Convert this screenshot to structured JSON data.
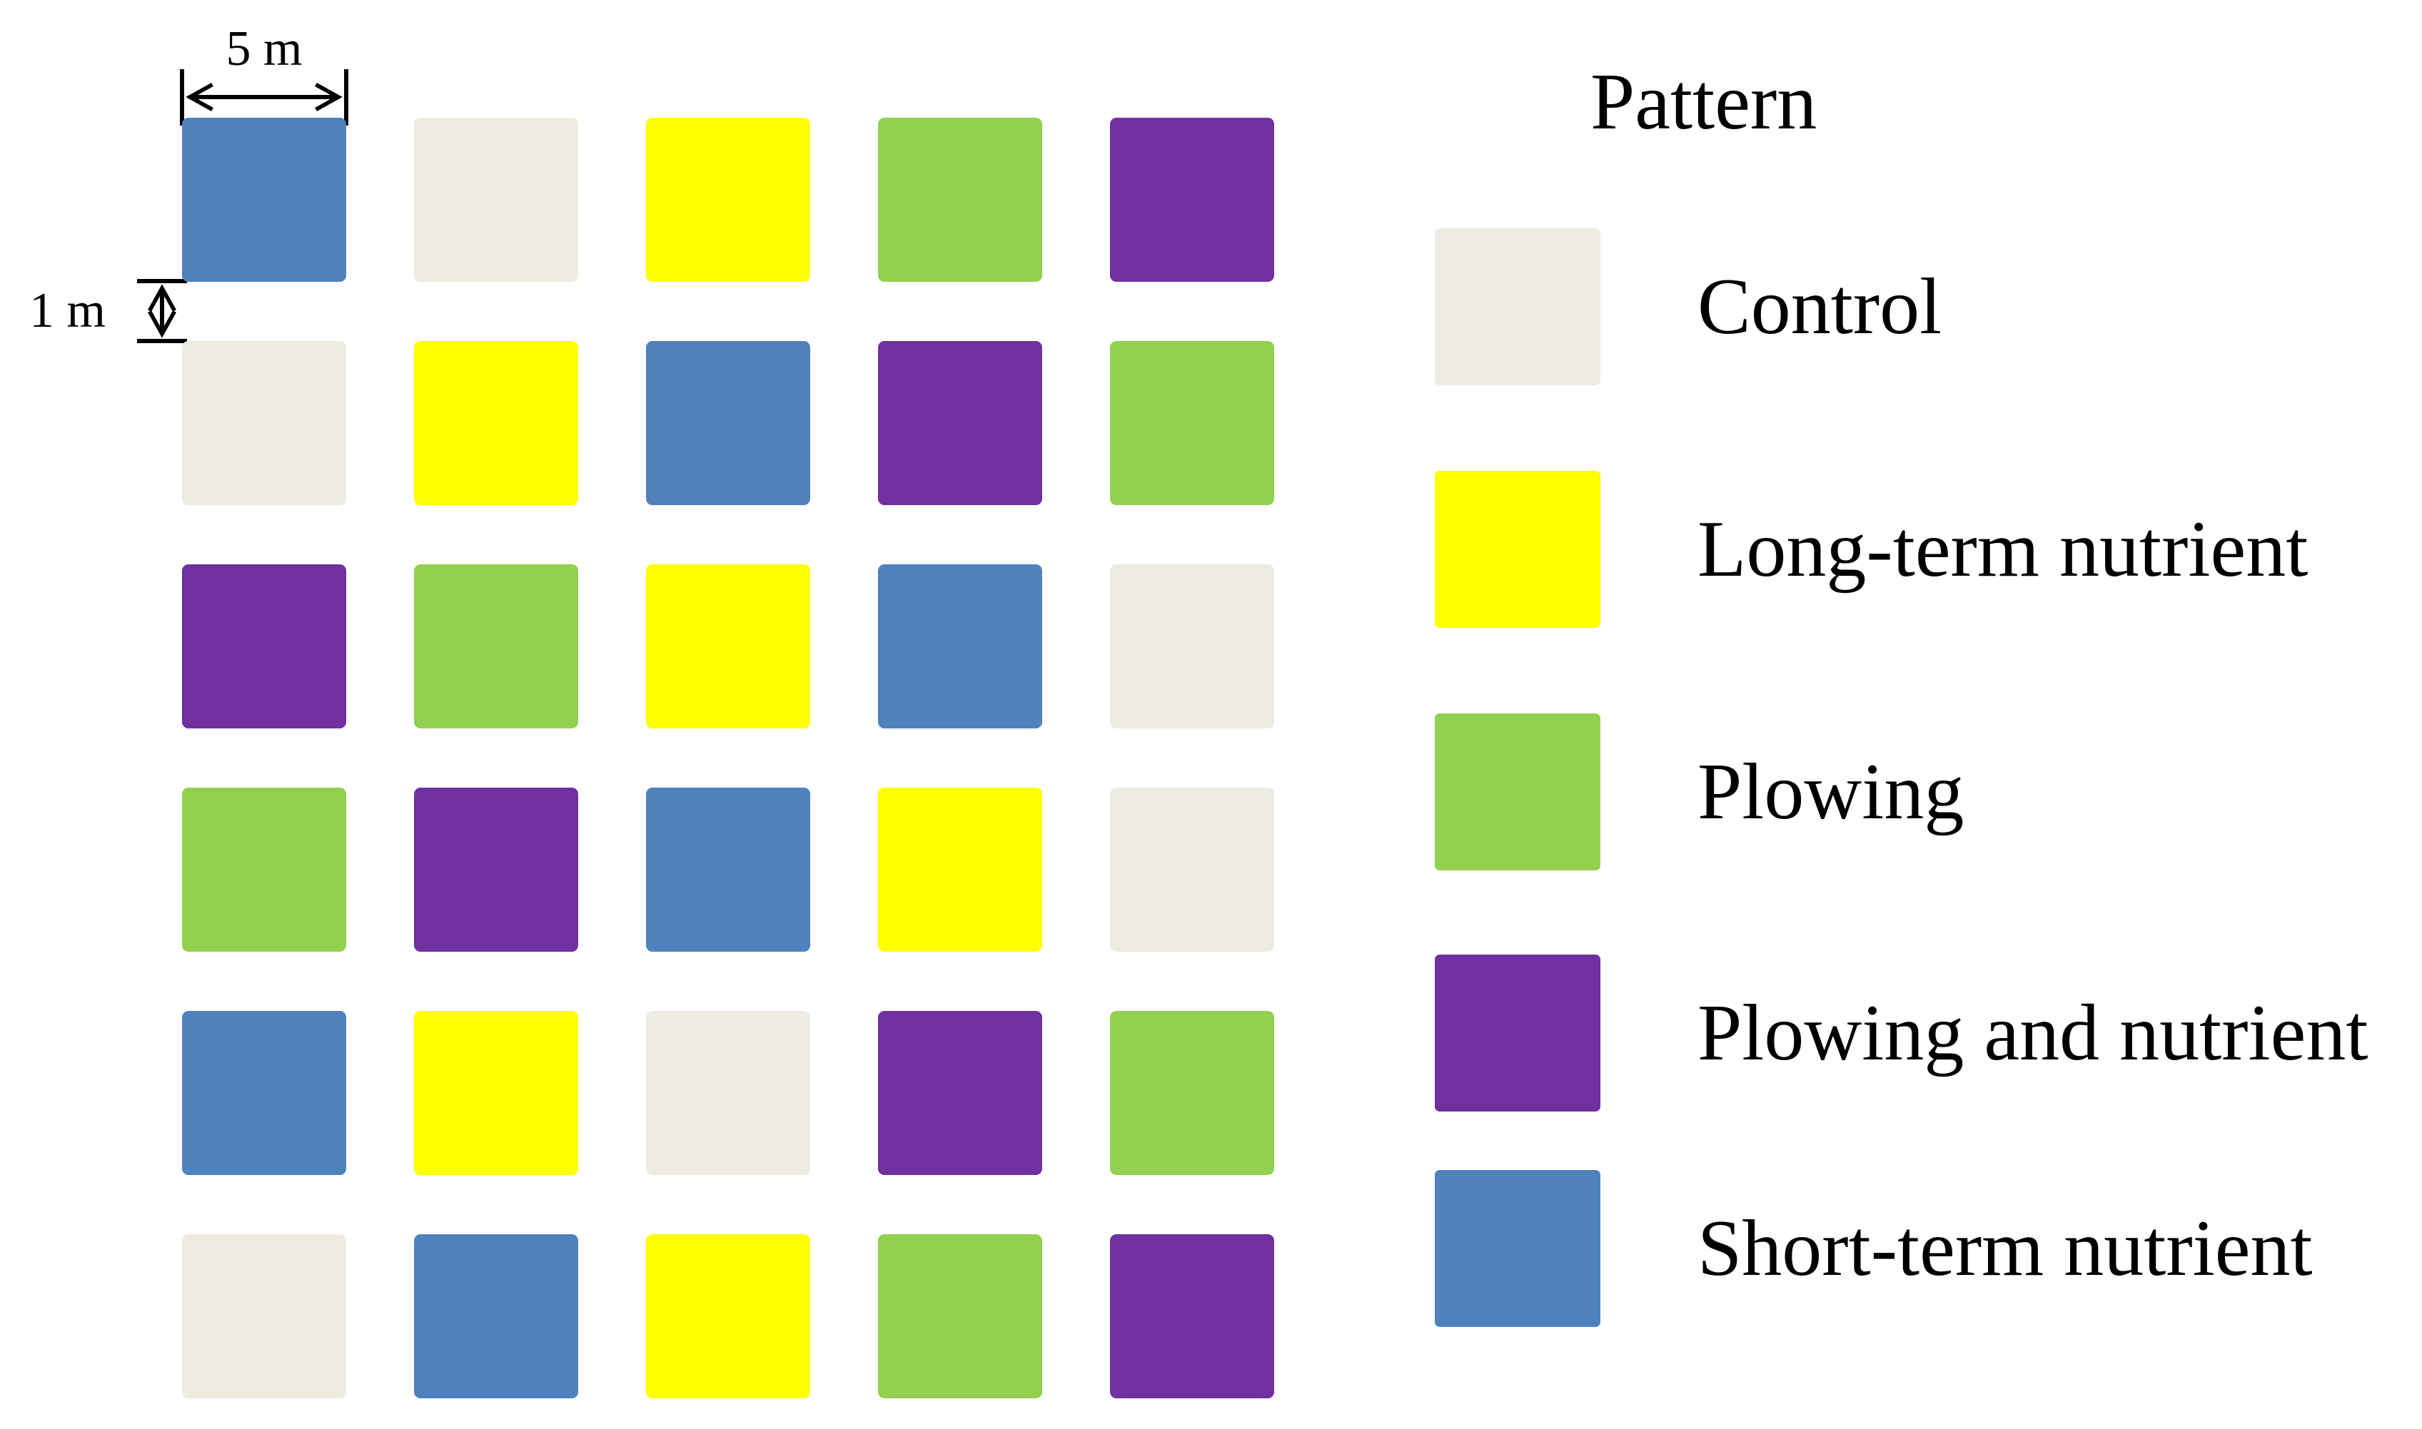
{
  "annotations": {
    "square_size_label": "5 m",
    "gap_label": "1 m"
  },
  "legend": {
    "title": "Pattern",
    "items": [
      {
        "key": "control",
        "label": "Control",
        "color": "#EEECE1"
      },
      {
        "key": "long_term_nutrient",
        "label": "Long-term nutrient",
        "color": "#FFFF00"
      },
      {
        "key": "plowing",
        "label": "Plowing",
        "color": "#92D050"
      },
      {
        "key": "plowing_and_nutrient",
        "label": "Plowing and nutrient",
        "color": "#7030A0"
      },
      {
        "key": "short_term_nutrient",
        "label": "Short-term nutrient",
        "color": "#4F81BD"
      }
    ]
  },
  "grid": {
    "rows": 6,
    "cols": 5,
    "cells": [
      [
        "short_term_nutrient",
        "control",
        "long_term_nutrient",
        "plowing",
        "plowing_and_nutrient"
      ],
      [
        "control",
        "long_term_nutrient",
        "short_term_nutrient",
        "plowing_and_nutrient",
        "plowing"
      ],
      [
        "plowing_and_nutrient",
        "plowing",
        "long_term_nutrient",
        "short_term_nutrient",
        "control"
      ],
      [
        "plowing",
        "plowing_and_nutrient",
        "short_term_nutrient",
        "long_term_nutrient",
        "control"
      ],
      [
        "short_term_nutrient",
        "long_term_nutrient",
        "control",
        "plowing_and_nutrient",
        "plowing"
      ],
      [
        "control",
        "short_term_nutrient",
        "long_term_nutrient",
        "plowing",
        "plowing_and_nutrient"
      ]
    ]
  }
}
